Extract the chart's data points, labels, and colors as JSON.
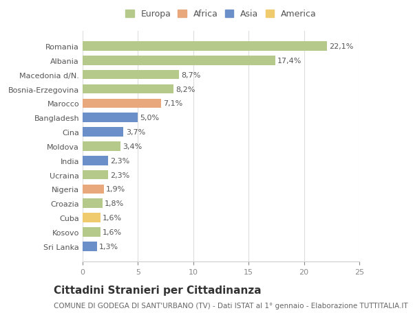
{
  "categories": [
    "Romania",
    "Albania",
    "Macedonia d/N.",
    "Bosnia-Erzegovina",
    "Marocco",
    "Bangladesh",
    "Cina",
    "Moldova",
    "India",
    "Ucraina",
    "Nigeria",
    "Croazia",
    "Cuba",
    "Kosovo",
    "Sri Lanka"
  ],
  "values": [
    22.1,
    17.4,
    8.7,
    8.2,
    7.1,
    5.0,
    3.7,
    3.4,
    2.3,
    2.3,
    1.9,
    1.8,
    1.6,
    1.6,
    1.3
  ],
  "labels": [
    "22,1%",
    "17,4%",
    "8,7%",
    "8,2%",
    "7,1%",
    "5,0%",
    "3,7%",
    "3,4%",
    "2,3%",
    "2,3%",
    "1,9%",
    "1,8%",
    "1,6%",
    "1,6%",
    "1,3%"
  ],
  "colors": [
    "#b5c98a",
    "#b5c98a",
    "#b5c98a",
    "#b5c98a",
    "#e8a87c",
    "#6b8fc9",
    "#6b8fc9",
    "#b5c98a",
    "#6b8fc9",
    "#b5c98a",
    "#e8a87c",
    "#b5c98a",
    "#f0cb6e",
    "#b5c98a",
    "#6b8fc9"
  ],
  "legend_labels": [
    "Europa",
    "Africa",
    "Asia",
    "America"
  ],
  "legend_colors": [
    "#b5c98a",
    "#e8a87c",
    "#6b8fc9",
    "#f0cb6e"
  ],
  "xlim": [
    0,
    25
  ],
  "xticks": [
    0,
    5,
    10,
    15,
    20,
    25
  ],
  "title": "Cittadini Stranieri per Cittadinanza",
  "subtitle": "COMUNE DI GODEGA DI SANT'URBANO (TV) - Dati ISTAT al 1° gennaio - Elaborazione TUTTITALIA.IT",
  "background_color": "#ffffff",
  "bar_height": 0.65,
  "label_fontsize": 8,
  "tick_fontsize": 8,
  "title_fontsize": 11,
  "subtitle_fontsize": 7.5
}
